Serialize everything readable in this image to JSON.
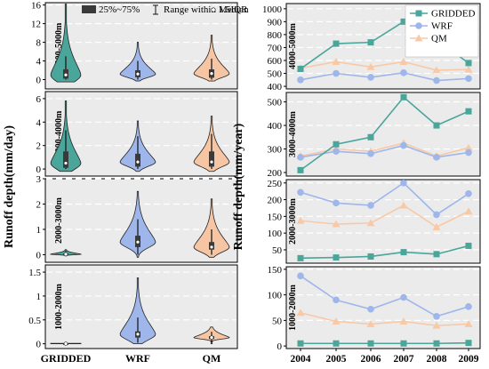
{
  "figure": {
    "left_ylabel": "Runoff depth(mm/day)",
    "right_ylabel": "Runoff depth(mm/year)"
  },
  "colors": {
    "GRIDDED": "#4aa59a",
    "WRF": "#9fb6ea",
    "QM": "#f6c6a4",
    "QM_line": "#f8c9a6",
    "panel_bg": "#ebebeb"
  },
  "chart_data": [
    {
      "type": "violin",
      "title": "",
      "xlabel": "",
      "ylabel": "Runoff depth(mm/day)",
      "categories": [
        "GRIDDED",
        "WRF",
        "QM"
      ],
      "legend": {
        "placement": "top",
        "entries": [
          "25%~75%",
          "Range within 1.5IQR",
          "Median"
        ]
      },
      "panels": [
        {
          "label": "4000-5000m",
          "ylim": [
            -2,
            16.5
          ],
          "yticks": [
            0,
            4,
            8,
            12,
            16
          ],
          "grid": [
            4,
            8,
            12,
            16
          ],
          "violins": [
            {
              "name": "GRIDDED",
              "min": -0.5,
              "max": 16.2,
              "q1": 0.2,
              "q3": 2.2,
              "median": 1.0,
              "whisker_low": 0,
              "whisker_high": 5.0
            },
            {
              "name": "WRF",
              "min": -0.3,
              "max": 8.0,
              "q1": 0.5,
              "q3": 2.0,
              "median": 1.2,
              "whisker_low": 0,
              "whisker_high": 4.0
            },
            {
              "name": "QM",
              "min": -0.3,
              "max": 9.5,
              "q1": 0.4,
              "q3": 2.2,
              "median": 1.3,
              "whisker_low": 0,
              "whisker_high": 4.5
            }
          ]
        },
        {
          "label": "3000-4000m",
          "ylim": [
            -0.6,
            6.6
          ],
          "yticks": [
            0,
            2,
            4,
            6
          ],
          "grid": [
            2,
            4,
            6
          ],
          "violins": [
            {
              "name": "GRIDDED",
              "min": -0.2,
              "max": 5.8,
              "q1": 0.1,
              "q3": 1.5,
              "median": 0.5,
              "whisker_low": 0,
              "whisker_high": 3.3
            },
            {
              "name": "WRF",
              "min": -0.2,
              "max": 4.1,
              "q1": 0.2,
              "q3": 1.3,
              "median": 0.6,
              "whisker_low": 0,
              "whisker_high": 2.8
            },
            {
              "name": "QM",
              "min": -0.2,
              "max": 4.5,
              "q1": 0.2,
              "q3": 1.5,
              "median": 0.6,
              "whisker_low": 0,
              "whisker_high": 3.0
            }
          ]
        },
        {
          "label": "2000-3000m",
          "ylim": [
            -0.3,
            3.0
          ],
          "yticks": [
            0,
            1,
            2,
            3
          ],
          "grid": [
            1,
            2,
            3
          ],
          "violins": [
            {
              "name": "GRIDDED",
              "min": -0.05,
              "max": 0.2,
              "q1": 0.0,
              "q3": 0.05,
              "median": 0.02,
              "whisker_low": 0,
              "whisker_high": 0.15
            },
            {
              "name": "WRF",
              "min": -0.1,
              "max": 2.5,
              "q1": 0.3,
              "q3": 0.75,
              "median": 0.5,
              "whisker_low": 0,
              "whisker_high": 1.4
            },
            {
              "name": "QM",
              "min": -0.1,
              "max": 2.2,
              "q1": 0.2,
              "q3": 0.5,
              "median": 0.3,
              "whisker_low": 0,
              "whisker_high": 1.0
            }
          ]
        },
        {
          "label": "1000-2000m",
          "ylim": [
            -0.1,
            1.65
          ],
          "yticks": [
            0.0,
            0.5,
            1.0,
            1.5
          ],
          "grid": [
            0.5,
            1.0,
            1.5
          ],
          "violins": [
            {
              "name": "GRIDDED",
              "min": 0.0,
              "max": 0.01,
              "q1": 0.0,
              "q3": 0.005,
              "median": 0.002,
              "whisker_low": 0,
              "whisker_high": 0.01
            },
            {
              "name": "WRF",
              "min": 0.0,
              "max": 1.38,
              "q1": 0.13,
              "q3": 0.26,
              "median": 0.2,
              "whisker_low": 0.02,
              "whisker_high": 0.55
            },
            {
              "name": "QM",
              "min": 0.0,
              "max": 0.35,
              "q1": 0.1,
              "q3": 0.16,
              "median": 0.13,
              "whisker_low": 0.03,
              "whisker_high": 0.25
            }
          ]
        }
      ]
    },
    {
      "type": "line",
      "title": "",
      "xlabel": "",
      "ylabel": "Runoff depth(mm/year)",
      "x": [
        "2004",
        "2005",
        "2006",
        "2007",
        "2008",
        "2009"
      ],
      "legend": {
        "placement": "top-right",
        "entries": [
          "GRIDDED",
          "WRF",
          "QM"
        ]
      },
      "panels": [
        {
          "label": "4000-5000m",
          "ylim": [
            380,
            1040
          ],
          "yticks": [
            400,
            500,
            600,
            700,
            800,
            900,
            1000
          ],
          "grid": [
            500,
            600,
            700,
            800,
            900,
            1000
          ],
          "series": [
            {
              "name": "GRIDDED",
              "values": [
                535,
                730,
                740,
                900,
                760,
                580
              ]
            },
            {
              "name": "WRF",
              "values": [
                450,
                500,
                470,
                505,
                445,
                460
              ]
            },
            {
              "name": "QM",
              "values": [
                540,
                590,
                550,
                590,
                525,
                530
              ]
            }
          ]
        },
        {
          "label": "3000-4000m",
          "ylim": [
            185,
            540
          ],
          "yticks": [
            200,
            300,
            400,
            500
          ],
          "grid": [
            300,
            400,
            500
          ],
          "series": [
            {
              "name": "GRIDDED",
              "values": [
                210,
                320,
                350,
                520,
                400,
                460
              ]
            },
            {
              "name": "WRF",
              "values": [
                265,
                290,
                280,
                315,
                265,
                285
              ]
            },
            {
              "name": "QM",
              "values": [
                270,
                300,
                290,
                325,
                270,
                305
              ]
            }
          ]
        },
        {
          "label": "2000-3000m",
          "ylim": [
            10,
            260
          ],
          "yticks": [
            50,
            100,
            150,
            200,
            250
          ],
          "grid": [
            50,
            100,
            150,
            200,
            250
          ],
          "series": [
            {
              "name": "GRIDDED",
              "values": [
                25,
                27,
                30,
                43,
                37,
                62
              ]
            },
            {
              "name": "WRF",
              "values": [
                222,
                190,
                183,
                250,
                155,
                218
              ]
            },
            {
              "name": "QM",
              "values": [
                137,
                127,
                130,
                183,
                118,
                165
              ]
            }
          ]
        },
        {
          "label": "1000-2000m",
          "ylim": [
            -5,
            155
          ],
          "yticks": [
            0,
            50,
            100,
            150
          ],
          "grid": [
            50,
            100,
            150
          ],
          "series": [
            {
              "name": "GRIDDED",
              "values": [
                5,
                5,
                5,
                5,
                5,
                6
              ]
            },
            {
              "name": "WRF",
              "values": [
                137,
                90,
                72,
                95,
                58,
                77
              ]
            },
            {
              "name": "QM",
              "values": [
                65,
                48,
                43,
                48,
                40,
                43
              ]
            }
          ]
        }
      ]
    }
  ]
}
